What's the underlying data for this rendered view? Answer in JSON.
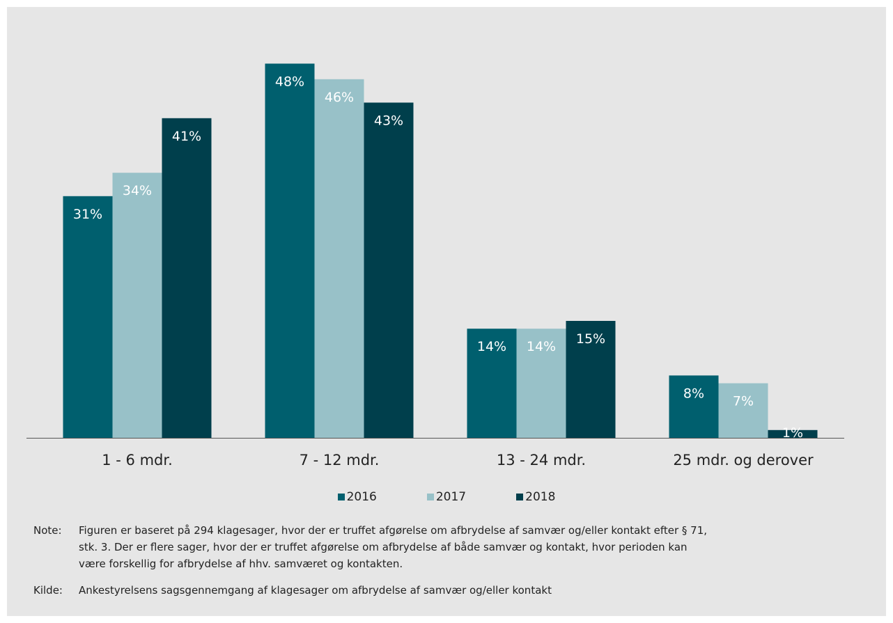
{
  "chart_data": {
    "type": "bar",
    "categories": [
      "1 - 6 mdr.",
      "7 - 12 mdr.",
      "13 - 24 mdr.",
      "25 mdr. og derover"
    ],
    "series": [
      {
        "name": "2016",
        "values": [
          31,
          48,
          14,
          8
        ],
        "labels": [
          "31%",
          "48%",
          "14%",
          "8%"
        ],
        "color": "#005f6e"
      },
      {
        "name": "2017",
        "values": [
          34,
          46,
          14,
          7
        ],
        "labels": [
          "34%",
          "46%",
          "14%",
          "7%"
        ],
        "color": "#98c1c8"
      },
      {
        "name": "2018",
        "values": [
          41,
          43,
          15,
          1
        ],
        "labels": [
          "41%",
          "43%",
          "15%",
          "1%"
        ],
        "color": "#003f4c"
      }
    ],
    "ylim": [
      0,
      50
    ],
    "grid": false,
    "legend": "bottom",
    "background": "#e6e6e6"
  },
  "note": {
    "label": "Note:",
    "lines": [
      "Figuren er baseret på 294 klagesager, hvor der er truffet afgørelse om afbrydelse af samvær og/eller kontakt efter § 71,",
      "stk. 3. Der er flere sager, hvor der er truffet afgørelse om afbrydelse af både samvær og kontakt, hvor perioden kan",
      "være forskellig for afbrydelse af hhv. samværet og kontakten."
    ]
  },
  "source": {
    "label": "Kilde:",
    "text": "Ankestyrelsens sagsgennemgang af klagesager om afbrydelse af samvær og/eller kontakt"
  }
}
